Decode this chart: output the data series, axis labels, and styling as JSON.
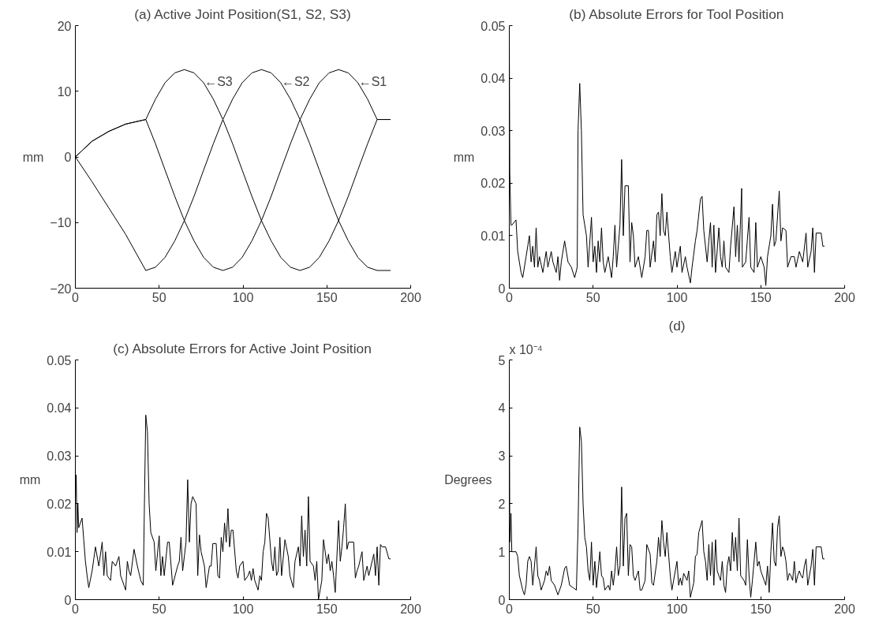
{
  "chart_data": [
    {
      "type": "line",
      "title": "(a) Active Joint Position(S1, S2, S3)",
      "ylabel": "mm",
      "xlim": [
        0,
        200
      ],
      "ylim": [
        -20,
        20
      ],
      "xticks": [
        0,
        50,
        100,
        150,
        200
      ],
      "yticks": [
        -20,
        -10,
        0,
        10,
        20
      ],
      "annotations": [
        {
          "text": "←S3",
          "x": 77,
          "y": 11.5
        },
        {
          "text": "←S2",
          "x": 123,
          "y": 11.5
        },
        {
          "text": "←S1",
          "x": 169,
          "y": 11.5
        }
      ],
      "series": [
        {
          "color": "#000000",
          "x": [
            0,
            10,
            20,
            30,
            42,
            47.8,
            53.5,
            59.3,
            65,
            70.8,
            76.5,
            82.3,
            88,
            93.8,
            99.5,
            105.3,
            111,
            116.8,
            122.5,
            128.3,
            134,
            139.8,
            145.5,
            151.3,
            157,
            162.8,
            168.5,
            174.3,
            180,
            188
          ],
          "values": [
            0,
            2.4,
            3.9,
            5.0,
            5.7,
            2.0,
            -2.0,
            -6.0,
            -9.7,
            -12.8,
            -15.3,
            -16.8,
            -17.3,
            -16.8,
            -15.3,
            -12.8,
            -9.7,
            -6.0,
            -2.0,
            2.0,
            5.7,
            8.8,
            11.3,
            12.8,
            13.3,
            12.8,
            11.3,
            8.8,
            5.7,
            5.7
          ]
        },
        {
          "color": "#000000",
          "x": [
            0,
            10,
            20,
            30,
            42,
            47.8,
            53.5,
            59.3,
            65,
            70.8,
            76.5,
            82.3,
            88,
            93.8,
            99.5,
            105.3,
            111,
            116.8,
            122.5,
            128.3,
            134,
            139.8,
            145.5,
            151.3,
            157,
            162.8,
            168.5,
            174.3,
            180,
            188
          ],
          "values": [
            0,
            -3.8,
            -7.8,
            -11.8,
            -17.3,
            -16.8,
            -15.3,
            -12.8,
            -9.7,
            -6.0,
            -2.0,
            2.0,
            5.7,
            8.8,
            11.3,
            12.8,
            13.3,
            12.8,
            11.3,
            8.8,
            5.7,
            2.0,
            -2.0,
            -6.0,
            -9.7,
            -12.8,
            -15.3,
            -16.8,
            -17.3,
            -17.3
          ]
        },
        {
          "color": "#000000",
          "x": [
            0,
            10,
            20,
            30,
            42,
            47.8,
            53.5,
            59.3,
            65,
            70.8,
            76.5,
            82.3,
            88,
            93.8,
            99.5,
            105.3,
            111,
            116.8,
            122.5,
            128.3,
            134,
            139.8,
            145.5,
            151.3,
            157,
            162.8,
            168.5,
            174.3,
            180,
            188
          ],
          "values": [
            0,
            2.4,
            3.9,
            5.0,
            5.7,
            8.8,
            11.3,
            12.8,
            13.3,
            12.8,
            11.3,
            8.8,
            5.7,
            2.0,
            -2.0,
            -6.0,
            -9.7,
            -12.8,
            -15.3,
            -16.8,
            -17.3,
            -16.8,
            -15.3,
            -12.8,
            -9.7,
            -6.0,
            -2.0,
            2.0,
            5.7,
            5.7
          ]
        }
      ]
    },
    {
      "type": "line",
      "title": "(b) Absolute Errors for Tool Position",
      "ylabel": "mm",
      "xlim": [
        0,
        200
      ],
      "ylim": [
        0,
        0.05
      ],
      "xticks": [
        0,
        50,
        100,
        150,
        200
      ],
      "yticks": [
        0,
        0.01,
        0.02,
        0.03,
        0.04,
        0.05
      ],
      "series": [
        {
          "color": "#000000",
          "x": [
            0,
            0.3,
            1,
            1.5,
            4,
            5,
            7,
            8,
            10,
            12,
            13,
            14,
            15,
            16,
            17,
            18,
            20,
            22,
            23,
            25,
            26,
            28,
            29,
            30,
            31,
            33,
            35,
            37,
            39,
            40.5,
            41,
            42,
            43,
            44,
            46,
            47,
            49,
            50,
            51,
            52,
            53,
            54,
            55,
            56,
            57,
            59,
            61,
            62,
            63,
            64,
            66,
            67,
            68,
            69,
            71,
            72,
            73,
            74,
            75,
            77,
            79,
            81,
            82,
            83,
            84,
            86,
            87,
            88,
            89,
            90,
            91,
            92,
            93,
            94,
            96,
            97,
            99,
            100,
            102,
            103,
            105,
            106,
            108,
            109,
            111,
            112,
            114,
            115,
            116,
            118,
            119,
            120,
            121,
            122,
            123,
            125,
            126,
            127,
            128,
            129,
            131,
            132,
            134,
            135,
            136,
            137,
            138.6,
            139,
            141,
            143,
            144,
            146,
            147,
            148,
            150,
            152,
            153,
            154,
            156,
            157,
            158,
            159,
            161,
            162,
            163,
            165,
            166,
            168,
            170,
            171,
            173,
            175,
            177,
            178,
            180,
            181,
            182,
            183,
            186,
            187,
            188
          ],
          "values": [
            0.048,
            0.022,
            0.012,
            0.012,
            0.013,
            0.007,
            0.003,
            0.002,
            0.006,
            0.01,
            0.005,
            0.008,
            0.004,
            0.0115,
            0.004,
            0.006,
            0.003,
            0.007,
            0.004,
            0.007,
            0.005,
            0.003,
            0.006,
            0.0015,
            0.005,
            0.009,
            0.005,
            0.004,
            0.002,
            0.004,
            0.03,
            0.039,
            0.03,
            0.014,
            0.01,
            0.004,
            0.0135,
            0.005,
            0.008,
            0.003,
            0.009,
            0.005,
            0.0115,
            0.005,
            0.003,
            0.006,
            0.002,
            0.006,
            0.012,
            0.004,
            0.012,
            0.0245,
            0.01,
            0.0195,
            0.0195,
            0.005,
            0.0125,
            0.01,
            0.004,
            0.006,
            0.002,
            0.006,
            0.011,
            0.011,
            0.004,
            0.009,
            0.005,
            0.014,
            0.0145,
            0.01,
            0.018,
            0.011,
            0.01,
            0.0145,
            0.006,
            0.003,
            0.007,
            0.004,
            0.008,
            0.003,
            0.006,
            0.004,
            0.001,
            0.004,
            0.009,
            0.011,
            0.017,
            0.0175,
            0.011,
            0.005,
            0.009,
            0.0125,
            0.004,
            0.012,
            0.003,
            0.0115,
            0.006,
            0.004,
            0.009,
            0.004,
            0.003,
            0.008,
            0.0155,
            0.006,
            0.012,
            0.005,
            0.019,
            0.004,
            0.005,
            0.0135,
            0.004,
            0.003,
            0.0125,
            0.004,
            0.006,
            0.004,
            0.0005,
            0.006,
            0.01,
            0.016,
            0.008,
            0.009,
            0.0185,
            0.009,
            0.0115,
            0.011,
            0.004,
            0.006,
            0.006,
            0.004,
            0.007,
            0.005,
            0.0105,
            0.004,
            0.007,
            0.0115,
            0.003,
            0.0105,
            0.0105,
            0.008,
            0.008
          ]
        }
      ]
    },
    {
      "type": "line",
      "title": "(c) Absolute Errors for Active Joint Position",
      "ylabel": "mm",
      "xlim": [
        0,
        200
      ],
      "ylim": [
        0,
        0.05
      ],
      "xticks": [
        0,
        50,
        100,
        150,
        200
      ],
      "yticks": [
        0,
        0.01,
        0.02,
        0.03,
        0.04,
        0.05
      ],
      "series": [
        {
          "color": "#000000",
          "x": [
            0,
            0.5,
            1,
            1.5,
            2,
            4,
            5,
            6,
            7,
            8,
            10,
            12,
            14,
            16,
            17,
            18,
            19,
            21,
            22,
            24,
            26,
            27,
            29,
            30,
            31,
            32,
            33,
            35,
            37,
            39,
            40.5,
            41.2,
            42,
            43,
            44,
            45,
            47,
            48,
            50,
            51,
            52,
            53,
            55,
            56,
            58,
            61,
            62,
            63,
            64,
            66,
            67,
            68,
            69,
            70,
            72,
            73,
            74,
            75,
            77,
            78,
            80,
            81,
            82,
            84,
            85,
            86,
            87,
            88,
            89,
            90,
            91,
            92,
            93,
            94,
            96,
            97,
            98,
            100,
            101,
            103,
            104,
            105,
            106,
            107,
            109,
            110,
            111,
            112,
            113,
            114,
            115,
            117,
            118,
            119,
            120,
            121,
            122,
            123,
            125,
            127,
            128,
            130,
            131,
            133,
            134,
            135,
            136,
            137,
            138,
            139,
            140,
            142,
            143,
            144,
            145,
            147,
            148,
            150,
            151,
            152,
            153,
            154,
            155,
            157,
            158,
            159,
            160,
            161,
            162,
            163,
            166,
            167,
            168,
            169,
            171,
            172,
            174,
            175,
            177,
            178,
            179,
            180,
            181,
            182,
            183,
            185,
            187,
            188
          ],
          "values": [
            0.02,
            0.026,
            0.014,
            0.02,
            0.015,
            0.017,
            0.0125,
            0.008,
            0.005,
            0.0025,
            0.006,
            0.011,
            0.007,
            0.012,
            0.005,
            0.01,
            0.005,
            0.004,
            0.008,
            0.007,
            0.009,
            0.005,
            0.003,
            0.002,
            0.008,
            0.006,
            0.005,
            0.0105,
            0.007,
            0.004,
            0.003,
            0.02,
            0.0385,
            0.035,
            0.02,
            0.014,
            0.012,
            0.006,
            0.0133,
            0.005,
            0.009,
            0.005,
            0.012,
            0.012,
            0.003,
            0.007,
            0.008,
            0.013,
            0.006,
            0.012,
            0.025,
            0.012,
            0.02,
            0.0215,
            0.02,
            0.005,
            0.0135,
            0.01,
            0.007,
            0.0025,
            0.007,
            0.007,
            0.0117,
            0.0117,
            0.005,
            0.0045,
            0.013,
            0.01,
            0.016,
            0.012,
            0.019,
            0.011,
            0.0145,
            0.0145,
            0.006,
            0.0045,
            0.007,
            0.008,
            0.004,
            0.005,
            0.006,
            0.004,
            0.0065,
            0.004,
            0.002,
            0.005,
            0.004,
            0.01,
            0.012,
            0.018,
            0.017,
            0.008,
            0.006,
            0.011,
            0.005,
            0.006,
            0.013,
            0.005,
            0.0125,
            0.009,
            0.005,
            0.0025,
            0.008,
            0.011,
            0.007,
            0.0175,
            0.009,
            0.0145,
            0.007,
            0.0215,
            0.008,
            0.007,
            0.004,
            0.008,
            0,
            0.004,
            0.0125,
            0.0075,
            0.0095,
            0.006,
            0.008,
            0.005,
            0.0015,
            0.0165,
            0.008,
            0.011,
            0.015,
            0.02,
            0.0105,
            0.012,
            0.012,
            0.0045,
            0.006,
            0.007,
            0.01,
            0.004,
            0.007,
            0.005,
            0.008,
            0.0095,
            0.005,
            0.011,
            0.003,
            0.0115,
            0.011,
            0.011,
            0.0085,
            0.0085
          ]
        }
      ]
    },
    {
      "type": "line",
      "title": "(d)",
      "ylabel": "Degrees",
      "xlim": [
        0,
        200
      ],
      "ylim": [
        0,
        5
      ],
      "xticks": [
        0,
        50,
        100,
        150,
        200
      ],
      "yticks": [
        0,
        1,
        2,
        3,
        4,
        5
      ],
      "annotations": [
        "x 10⁻⁴"
      ],
      "series": [
        {
          "color": "#000000",
          "x": [
            0,
            0.3,
            1,
            1.5,
            2,
            4,
            5,
            6,
            8,
            9,
            10,
            11,
            12,
            13,
            14,
            15,
            16,
            17,
            18,
            19,
            21,
            22,
            23,
            24,
            25,
            27,
            29,
            31,
            33,
            34,
            35,
            36,
            38,
            40,
            41,
            42,
            43,
            44,
            45,
            46,
            47,
            48,
            49,
            50,
            51,
            52,
            53,
            54,
            55,
            56,
            57,
            59,
            60,
            61,
            62,
            63,
            64,
            65,
            66,
            67,
            68,
            69,
            70,
            71,
            72,
            73,
            74,
            75,
            77,
            78,
            79,
            81,
            82,
            84,
            85,
            86,
            88,
            89,
            90,
            91,
            92,
            93,
            94,
            96,
            97,
            98,
            100,
            101,
            102,
            103,
            104,
            106,
            107,
            108,
            110,
            111,
            112,
            113,
            115,
            116,
            117,
            118,
            119,
            120,
            121,
            122,
            123,
            124,
            126,
            127,
            128,
            129,
            130,
            131,
            132,
            133,
            134,
            135,
            136,
            137,
            138,
            140,
            141,
            142,
            143,
            144,
            145,
            147,
            148,
            149,
            150,
            152,
            153,
            154,
            155,
            156,
            157,
            158,
            159,
            160,
            161,
            162,
            163,
            164,
            165,
            166,
            167,
            168,
            169,
            170,
            171,
            172,
            173,
            174,
            175,
            176,
            177,
            178,
            180,
            181,
            182,
            183,
            186,
            187,
            188
          ],
          "values": [
            4.8,
            1.2,
            1.8,
            1.0,
            1.0,
            1.0,
            0.9,
            0.5,
            0.2,
            0.1,
            0.3,
            0.8,
            0.9,
            0.8,
            0.3,
            0.7,
            1.1,
            0.5,
            0.4,
            0.2,
            0.4,
            0.6,
            0.5,
            0.7,
            0.4,
            0.3,
            0.1,
            0.3,
            0.65,
            0.7,
            0.5,
            0.3,
            0.25,
            0.2,
            1.5,
            3.6,
            3.3,
            2.0,
            1.3,
            1.1,
            0.6,
            0.4,
            1.2,
            0.3,
            0.8,
            0.25,
            0.6,
            1.0,
            0.5,
            0.45,
            0.2,
            0.3,
            0.2,
            0.6,
            0.3,
            0.6,
            1.1,
            0.5,
            0.7,
            2.35,
            0.7,
            1.7,
            1.8,
            0.5,
            1.15,
            1.1,
            0.5,
            0.4,
            0.6,
            0.2,
            0.2,
            0.4,
            1.15,
            0.95,
            0.35,
            0.3,
            0.8,
            1.3,
            0.9,
            1.65,
            1.2,
            0.9,
            1.4,
            0.5,
            0.2,
            0.4,
            0.8,
            0.3,
            0.45,
            0.3,
            0.55,
            0.4,
            0.6,
            0.05,
            0.35,
            0.9,
            0.95,
            1.4,
            1.65,
            1.0,
            0.8,
            0.4,
            1.15,
            0.5,
            1.2,
            0.3,
            1.25,
            0.6,
            0.4,
            0.8,
            0.3,
            0.15,
            0.7,
            0.9,
            0.6,
            1.4,
            0.8,
            1.3,
            0.6,
            1.7,
            0.5,
            0.4,
            0.3,
            1.25,
            0.5,
            0.05,
            0.4,
            1.2,
            0.7,
            0.8,
            0.6,
            0.4,
            0.3,
            0.7,
            0.15,
            1.0,
            1.6,
            0.8,
            0.7,
            1.5,
            1.75,
            0.9,
            1.1,
            1.0,
            0.8,
            0.4,
            0.55,
            0.5,
            0.4,
            0.8,
            0.35,
            0.5,
            0.6,
            0.5,
            0.45,
            0.7,
            0.85,
            0.3,
            0.7,
            1.05,
            0.3,
            1.1,
            1.1,
            0.85,
            0.85
          ]
        }
      ]
    }
  ]
}
